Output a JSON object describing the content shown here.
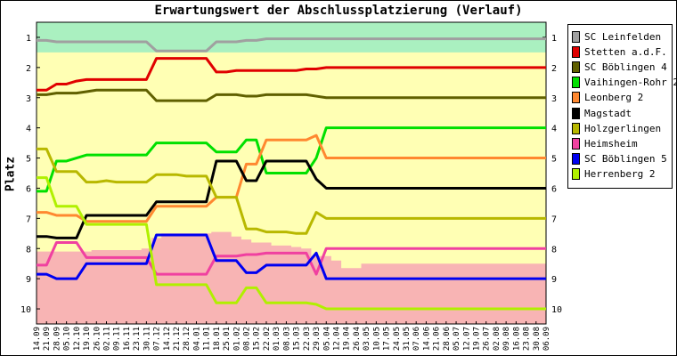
{
  "chart_data": {
    "type": "line",
    "title": "Erwartungswert der Abschlussplatzierung (Verlauf)",
    "ylabel": "Platz",
    "xlabel": "",
    "ylim": [
      0.5,
      10.5
    ],
    "y_inverted": true,
    "y_ticks": [
      "1",
      "2",
      "3",
      "4",
      "5",
      "6",
      "7",
      "8",
      "9",
      "10"
    ],
    "x_ticks": [
      "14.09",
      "21.09",
      "28.09",
      "05.10",
      "12.10",
      "19.10",
      "26.10",
      "02.11",
      "09.11",
      "16.11",
      "23.11",
      "30.11",
      "07.12",
      "14.12",
      "21.12",
      "28.12",
      "04.01",
      "11.01",
      "18.01",
      "25.01",
      "01.02",
      "08.02",
      "15.02",
      "22.02",
      "01.03",
      "08.03",
      "15.03",
      "22.03",
      "29.03",
      "05.04",
      "12.04",
      "19.04",
      "26.04",
      "03.05",
      "10.05",
      "17.05",
      "24.05",
      "31.05",
      "07.06",
      "14.06",
      "21.06",
      "28.06",
      "05.07",
      "12.07",
      "19.07",
      "26.07",
      "02.08",
      "09.08",
      "16.08",
      "23.08",
      "30.08",
      "06.09"
    ],
    "background_zones": [
      {
        "zone": "top",
        "color": "#aaf0c0",
        "bounds": [
          [
            0,
            1.5
          ],
          [
            51,
            1.5
          ]
        ]
      },
      {
        "zone": "middle",
        "color": "#ffffb4",
        "bounds": []
      },
      {
        "zone": "bottom",
        "color": "#f8b4b4",
        "upper": [
          [
            0,
            8.1
          ],
          [
            1,
            8.1
          ],
          [
            2,
            8.1
          ],
          [
            3,
            8.1
          ],
          [
            4,
            8.1
          ],
          [
            5,
            8.1
          ],
          [
            6,
            8.05
          ],
          [
            7,
            8.05
          ],
          [
            8,
            8.05
          ],
          [
            9,
            8.05
          ],
          [
            10,
            8.05
          ],
          [
            11,
            8.0
          ],
          [
            12,
            7.65
          ],
          [
            13,
            7.5
          ],
          [
            14,
            7.5
          ],
          [
            15,
            7.5
          ],
          [
            16,
            7.5
          ],
          [
            17,
            7.5
          ],
          [
            18,
            7.45
          ],
          [
            19,
            7.45
          ],
          [
            20,
            7.6
          ],
          [
            21,
            7.7
          ],
          [
            22,
            7.8
          ],
          [
            23,
            7.8
          ],
          [
            24,
            7.9
          ],
          [
            25,
            7.9
          ],
          [
            26,
            7.95
          ],
          [
            27,
            8.0
          ],
          [
            28,
            8.25
          ],
          [
            29,
            8.25
          ],
          [
            30,
            8.4
          ],
          [
            31,
            8.65
          ],
          [
            32,
            8.65
          ],
          [
            33,
            8.5
          ],
          [
            34,
            8.5
          ],
          [
            35,
            8.5
          ],
          [
            36,
            8.5
          ],
          [
            37,
            8.5
          ],
          [
            38,
            8.5
          ],
          [
            39,
            8.5
          ],
          [
            40,
            8.5
          ],
          [
            41,
            8.5
          ],
          [
            42,
            8.5
          ],
          [
            43,
            8.5
          ],
          [
            44,
            8.5
          ],
          [
            45,
            8.5
          ],
          [
            46,
            8.5
          ],
          [
            47,
            8.5
          ],
          [
            48,
            8.5
          ],
          [
            49,
            8.5
          ],
          [
            50,
            8.5
          ],
          [
            51,
            8.5
          ]
        ]
      }
    ],
    "series": [
      {
        "name": "SC Leinfelden",
        "color": "#a0a0a0",
        "values": [
          1.1,
          1.1,
          1.15,
          1.15,
          1.15,
          1.15,
          1.15,
          1.15,
          1.15,
          1.15,
          1.15,
          1.15,
          1.45,
          1.45,
          1.45,
          1.45,
          1.45,
          1.45,
          1.15,
          1.15,
          1.15,
          1.1,
          1.1,
          1.05,
          1.05,
          1.05,
          1.05,
          1.05,
          1.05,
          1.05,
          1.05,
          1.05,
          1.05,
          1.05,
          1.05,
          1.05,
          1.05,
          1.05,
          1.05,
          1.05,
          1.05,
          1.05,
          1.05,
          1.05,
          1.05,
          1.05,
          1.05,
          1.05,
          1.05,
          1.05,
          1.05,
          1.05
        ]
      },
      {
        "name": "Stetten a.d.F.",
        "color": "#e00000",
        "values": [
          2.75,
          2.75,
          2.55,
          2.55,
          2.45,
          2.4,
          2.4,
          2.4,
          2.4,
          2.4,
          2.4,
          2.4,
          1.7,
          1.7,
          1.7,
          1.7,
          1.7,
          1.7,
          2.15,
          2.15,
          2.1,
          2.1,
          2.1,
          2.1,
          2.1,
          2.1,
          2.1,
          2.05,
          2.05,
          2.0,
          2.0,
          2.0,
          2.0,
          2.0,
          2.0,
          2.0,
          2.0,
          2.0,
          2.0,
          2.0,
          2.0,
          2.0,
          2.0,
          2.0,
          2.0,
          2.0,
          2.0,
          2.0,
          2.0,
          2.0,
          2.0,
          2.0
        ]
      },
      {
        "name": "SC Böblingen 4",
        "color": "#606000",
        "values": [
          2.9,
          2.9,
          2.85,
          2.85,
          2.85,
          2.8,
          2.75,
          2.75,
          2.75,
          2.75,
          2.75,
          2.75,
          3.1,
          3.1,
          3.1,
          3.1,
          3.1,
          3.1,
          2.9,
          2.9,
          2.9,
          2.95,
          2.95,
          2.9,
          2.9,
          2.9,
          2.9,
          2.9,
          2.95,
          3.0,
          3.0,
          3.0,
          3.0,
          3.0,
          3.0,
          3.0,
          3.0,
          3.0,
          3.0,
          3.0,
          3.0,
          3.0,
          3.0,
          3.0,
          3.0,
          3.0,
          3.0,
          3.0,
          3.0,
          3.0,
          3.0,
          3.0
        ]
      },
      {
        "name": "Vaihingen-Rohr 2",
        "color": "#00e000",
        "values": [
          6.1,
          6.1,
          5.1,
          5.1,
          5.0,
          4.9,
          4.9,
          4.9,
          4.9,
          4.9,
          4.9,
          4.9,
          4.5,
          4.5,
          4.5,
          4.5,
          4.5,
          4.5,
          4.8,
          4.8,
          4.8,
          4.4,
          4.4,
          5.5,
          5.5,
          5.5,
          5.5,
          5.5,
          5.0,
          4.0,
          4.0,
          4.0,
          4.0,
          4.0,
          4.0,
          4.0,
          4.0,
          4.0,
          4.0,
          4.0,
          4.0,
          4.0,
          4.0,
          4.0,
          4.0,
          4.0,
          4.0,
          4.0,
          4.0,
          4.0,
          4.0,
          4.0
        ]
      },
      {
        "name": "Leonberg 2",
        "color": "#ff8830",
        "values": [
          6.8,
          6.8,
          6.9,
          6.9,
          6.9,
          7.1,
          7.1,
          7.1,
          7.1,
          7.1,
          7.1,
          7.1,
          6.6,
          6.6,
          6.6,
          6.6,
          6.6,
          6.6,
          6.3,
          6.3,
          6.3,
          5.2,
          5.2,
          4.4,
          4.4,
          4.4,
          4.4,
          4.4,
          4.25,
          5.0,
          5.0,
          5.0,
          5.0,
          5.0,
          5.0,
          5.0,
          5.0,
          5.0,
          5.0,
          5.0,
          5.0,
          5.0,
          5.0,
          5.0,
          5.0,
          5.0,
          5.0,
          5.0,
          5.0,
          5.0,
          5.0,
          5.0
        ]
      },
      {
        "name": "Magstadt",
        "color": "#000000",
        "values": [
          7.6,
          7.6,
          7.65,
          7.65,
          7.65,
          6.9,
          6.9,
          6.9,
          6.9,
          6.9,
          6.9,
          6.9,
          6.45,
          6.45,
          6.45,
          6.45,
          6.45,
          6.45,
          5.1,
          5.1,
          5.1,
          5.75,
          5.75,
          5.1,
          5.1,
          5.1,
          5.1,
          5.1,
          5.7,
          6.0,
          6.0,
          6.0,
          6.0,
          6.0,
          6.0,
          6.0,
          6.0,
          6.0,
          6.0,
          6.0,
          6.0,
          6.0,
          6.0,
          6.0,
          6.0,
          6.0,
          6.0,
          6.0,
          6.0,
          6.0,
          6.0,
          6.0
        ]
      },
      {
        "name": "Holzgerlingen",
        "color": "#b8b800",
        "values": [
          4.7,
          4.7,
          5.45,
          5.45,
          5.45,
          5.8,
          5.8,
          5.75,
          5.8,
          5.8,
          5.8,
          5.8,
          5.55,
          5.55,
          5.55,
          5.6,
          5.6,
          5.6,
          6.3,
          6.3,
          6.3,
          7.35,
          7.35,
          7.45,
          7.45,
          7.45,
          7.5,
          7.5,
          6.8,
          7.0,
          7.0,
          7.0,
          7.0,
          7.0,
          7.0,
          7.0,
          7.0,
          7.0,
          7.0,
          7.0,
          7.0,
          7.0,
          7.0,
          7.0,
          7.0,
          7.0,
          7.0,
          7.0,
          7.0,
          7.0,
          7.0,
          7.0
        ]
      },
      {
        "name": "Heimsheim",
        "color": "#f040a0",
        "values": [
          8.55,
          8.55,
          7.8,
          7.8,
          7.8,
          8.3,
          8.3,
          8.3,
          8.3,
          8.3,
          8.3,
          8.3,
          8.85,
          8.85,
          8.85,
          8.85,
          8.85,
          8.85,
          8.25,
          8.25,
          8.25,
          8.2,
          8.2,
          8.15,
          8.15,
          8.15,
          8.15,
          8.15,
          8.85,
          8.0,
          8.0,
          8.0,
          8.0,
          8.0,
          8.0,
          8.0,
          8.0,
          8.0,
          8.0,
          8.0,
          8.0,
          8.0,
          8.0,
          8.0,
          8.0,
          8.0,
          8.0,
          8.0,
          8.0,
          8.0,
          8.0,
          8.0
        ]
      },
      {
        "name": "SC Böblingen 5",
        "color": "#0000f0",
        "values": [
          8.85,
          8.85,
          9.0,
          9.0,
          9.0,
          8.5,
          8.5,
          8.5,
          8.5,
          8.5,
          8.5,
          8.5,
          7.55,
          7.55,
          7.55,
          7.55,
          7.55,
          7.55,
          8.4,
          8.4,
          8.4,
          8.8,
          8.8,
          8.55,
          8.55,
          8.55,
          8.55,
          8.55,
          8.15,
          9.0,
          9.0,
          9.0,
          9.0,
          9.0,
          9.0,
          9.0,
          9.0,
          9.0,
          9.0,
          9.0,
          9.0,
          9.0,
          9.0,
          9.0,
          9.0,
          9.0,
          9.0,
          9.0,
          9.0,
          9.0,
          9.0,
          9.0
        ]
      },
      {
        "name": "Herrenberg 2",
        "color": "#b0f000",
        "values": [
          5.65,
          5.65,
          6.6,
          6.6,
          6.6,
          7.2,
          7.2,
          7.2,
          7.2,
          7.2,
          7.2,
          7.2,
          9.2,
          9.2,
          9.2,
          9.2,
          9.2,
          9.2,
          9.8,
          9.8,
          9.8,
          9.3,
          9.3,
          9.8,
          9.8,
          9.8,
          9.8,
          9.8,
          9.85,
          10.0,
          10.0,
          10.0,
          10.0,
          10.0,
          10.0,
          10.0,
          10.0,
          10.0,
          10.0,
          10.0,
          10.0,
          10.0,
          10.0,
          10.0,
          10.0,
          10.0,
          10.0,
          10.0,
          10.0,
          10.0,
          10.0,
          10.0
        ]
      }
    ]
  }
}
